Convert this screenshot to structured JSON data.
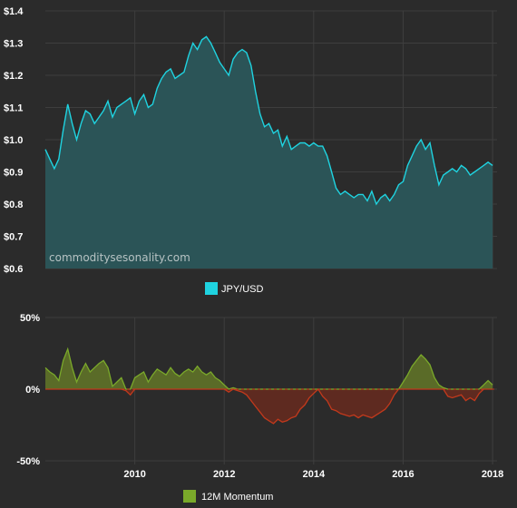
{
  "chart_data": [
    {
      "type": "area",
      "watermark": "commoditysesonality.com",
      "y_ticks": [
        {
          "value": 1.4,
          "label": "$1.4"
        },
        {
          "value": 1.3,
          "label": "$1.3"
        },
        {
          "value": 1.2,
          "label": "$1.2"
        },
        {
          "value": 1.1,
          "label": "$1.1"
        },
        {
          "value": 1.0,
          "label": "$1.0"
        },
        {
          "value": 0.9,
          "label": "$0.9"
        },
        {
          "value": 0.8,
          "label": "$0.8"
        },
        {
          "value": 0.7,
          "label": "$0.7"
        },
        {
          "value": 0.6,
          "label": "$0.6"
        }
      ],
      "ylim": [
        0.6,
        1.4
      ],
      "xlim": [
        2008.0,
        2018.1
      ],
      "grid": true,
      "legend_position": "bottom-center",
      "series": [
        {
          "name": "JPY/USD",
          "color": "#1fd3e0",
          "fill": "#2b5457",
          "x": [
            2008.0,
            2008.1,
            2008.2,
            2008.3,
            2008.4,
            2008.5,
            2008.6,
            2008.7,
            2008.8,
            2008.9,
            2009.0,
            2009.1,
            2009.2,
            2009.3,
            2009.4,
            2009.5,
            2009.6,
            2009.7,
            2009.8,
            2009.9,
            2010.0,
            2010.1,
            2010.2,
            2010.3,
            2010.4,
            2010.5,
            2010.6,
            2010.7,
            2010.8,
            2010.9,
            2011.0,
            2011.1,
            2011.2,
            2011.3,
            2011.4,
            2011.5,
            2011.6,
            2011.7,
            2011.8,
            2011.9,
            2012.0,
            2012.1,
            2012.2,
            2012.3,
            2012.4,
            2012.5,
            2012.6,
            2012.7,
            2012.8,
            2012.9,
            2013.0,
            2013.1,
            2013.2,
            2013.3,
            2013.4,
            2013.5,
            2013.6,
            2013.7,
            2013.8,
            2013.9,
            2014.0,
            2014.1,
            2014.2,
            2014.3,
            2014.4,
            2014.5,
            2014.6,
            2014.7,
            2014.8,
            2014.9,
            2015.0,
            2015.1,
            2015.2,
            2015.3,
            2015.4,
            2015.5,
            2015.6,
            2015.7,
            2015.8,
            2015.9,
            2016.0,
            2016.1,
            2016.2,
            2016.3,
            2016.4,
            2016.5,
            2016.6,
            2016.7,
            2016.8,
            2016.9,
            2017.0,
            2017.1,
            2017.2,
            2017.3,
            2017.4,
            2017.5,
            2017.6,
            2017.7,
            2017.8,
            2017.9,
            2018.0
          ],
          "values": [
            0.97,
            0.94,
            0.91,
            0.94,
            1.03,
            1.11,
            1.05,
            1.0,
            1.05,
            1.09,
            1.08,
            1.05,
            1.07,
            1.09,
            1.12,
            1.07,
            1.1,
            1.11,
            1.12,
            1.13,
            1.08,
            1.12,
            1.14,
            1.1,
            1.11,
            1.16,
            1.19,
            1.21,
            1.22,
            1.19,
            1.2,
            1.21,
            1.26,
            1.3,
            1.28,
            1.31,
            1.32,
            1.3,
            1.27,
            1.24,
            1.22,
            1.2,
            1.25,
            1.27,
            1.28,
            1.27,
            1.23,
            1.15,
            1.08,
            1.04,
            1.05,
            1.02,
            1.03,
            0.98,
            1.01,
            0.97,
            0.98,
            0.99,
            0.99,
            0.98,
            0.99,
            0.98,
            0.98,
            0.95,
            0.9,
            0.85,
            0.83,
            0.84,
            0.83,
            0.82,
            0.83,
            0.83,
            0.81,
            0.84,
            0.8,
            0.82,
            0.83,
            0.81,
            0.83,
            0.86,
            0.87,
            0.92,
            0.95,
            0.98,
            1.0,
            0.97,
            0.99,
            0.92,
            0.86,
            0.89,
            0.9,
            0.91,
            0.9,
            0.92,
            0.91,
            0.89,
            0.9,
            0.91,
            0.92,
            0.93,
            0.92
          ]
        }
      ]
    },
    {
      "type": "area",
      "y_ticks": [
        {
          "value": 50,
          "label": "50%"
        },
        {
          "value": 0,
          "label": "0%"
        },
        {
          "value": -50,
          "label": "-50%"
        }
      ],
      "x_ticks": [
        {
          "value": 2010,
          "label": "2010"
        },
        {
          "value": 2012,
          "label": "2012"
        },
        {
          "value": 2014,
          "label": "2014"
        },
        {
          "value": 2016,
          "label": "2016"
        },
        {
          "value": 2018,
          "label": "2018"
        }
      ],
      "ylim": [
        -50,
        50
      ],
      "xlim": [
        2008.0,
        2018.1
      ],
      "grid": true,
      "legend_position": "bottom-center",
      "series": [
        {
          "name": "12M Momentum",
          "color": "#7aa92a",
          "positive_fill": "#5a6b28",
          "negative_color": "#c2391c",
          "negative_fill": "#5e2a20",
          "x": [
            2008.0,
            2008.1,
            2008.2,
            2008.3,
            2008.4,
            2008.5,
            2008.6,
            2008.7,
            2008.8,
            2008.9,
            2009.0,
            2009.1,
            2009.2,
            2009.3,
            2009.4,
            2009.5,
            2009.6,
            2009.7,
            2009.8,
            2009.9,
            2010.0,
            2010.1,
            2010.2,
            2010.3,
            2010.4,
            2010.5,
            2010.6,
            2010.7,
            2010.8,
            2010.9,
            2011.0,
            2011.1,
            2011.2,
            2011.3,
            2011.4,
            2011.5,
            2011.6,
            2011.7,
            2011.8,
            2011.9,
            2012.0,
            2012.1,
            2012.2,
            2012.3,
            2012.4,
            2012.5,
            2012.6,
            2012.7,
            2012.8,
            2012.9,
            2013.0,
            2013.1,
            2013.2,
            2013.3,
            2013.4,
            2013.5,
            2013.6,
            2013.7,
            2013.8,
            2013.9,
            2014.0,
            2014.1,
            2014.2,
            2014.3,
            2014.4,
            2014.5,
            2014.6,
            2014.7,
            2014.8,
            2014.9,
            2015.0,
            2015.1,
            2015.2,
            2015.3,
            2015.4,
            2015.5,
            2015.6,
            2015.7,
            2015.8,
            2015.9,
            2016.0,
            2016.1,
            2016.2,
            2016.3,
            2016.4,
            2016.5,
            2016.6,
            2016.7,
            2016.8,
            2016.9,
            2017.0,
            2017.1,
            2017.2,
            2017.3,
            2017.4,
            2017.5,
            2017.6,
            2017.7,
            2017.8,
            2017.9,
            2018.0
          ],
          "values": [
            15,
            12,
            10,
            6,
            20,
            28,
            15,
            5,
            12,
            18,
            12,
            15,
            18,
            20,
            15,
            2,
            5,
            8,
            -1,
            -4,
            8,
            10,
            12,
            5,
            10,
            14,
            12,
            10,
            15,
            11,
            9,
            12,
            14,
            12,
            16,
            12,
            10,
            12,
            8,
            6,
            3,
            -2,
            1,
            -1,
            -2,
            -4,
            -8,
            -12,
            -16,
            -20,
            -22,
            -24,
            -21,
            -23,
            -22,
            -20,
            -19,
            -14,
            -11,
            -6,
            -3,
            0,
            -5,
            -8,
            -14,
            -15,
            -17,
            -18,
            -19,
            -18,
            -20,
            -18,
            -19,
            -20,
            -18,
            -16,
            -14,
            -10,
            -4,
            0,
            5,
            10,
            16,
            20,
            24,
            21,
            17,
            8,
            3,
            1,
            -5,
            -6,
            -5,
            -4,
            -8,
            -6,
            -8,
            -3,
            3,
            6,
            3
          ]
        }
      ]
    }
  ]
}
